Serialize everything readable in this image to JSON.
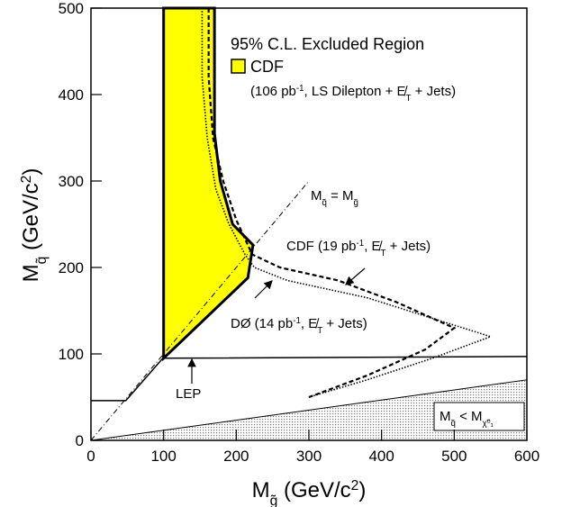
{
  "chart_data": {
    "type": "line",
    "xlabel": [
      "M",
      "g̃",
      " (GeV/c",
      "2",
      ")"
    ],
    "ylabel": [
      "M",
      "q̃",
      " (GeV/c",
      "2",
      ")"
    ],
    "xlim": [
      0,
      600
    ],
    "ylim": [
      0,
      500
    ],
    "xticks": [
      0,
      100,
      200,
      300,
      400,
      500,
      600
    ],
    "yticks": [
      0,
      100,
      200,
      300,
      400,
      500
    ],
    "annotations": {
      "title": [
        "95% C.L. Excluded Region"
      ],
      "cdf_legend": [
        "CDF"
      ],
      "cdf_note": [
        "(106 pb",
        "-1",
        ", LS Dilepton + E̸",
        "T",
        " + Jets)"
      ],
      "diagonal": [
        "M",
        "q̃",
        " = M",
        "g̃"
      ],
      "cdf19": [
        "CDF (19 pb",
        "-1",
        ", E̸",
        "T",
        " + Jets)"
      ],
      "d0": [
        "DØ (14 pb",
        "-1",
        ", E̸",
        "T",
        " + Jets)"
      ],
      "lep": [
        "LEP"
      ],
      "lsp": [
        "M",
        "q̃",
        " < M",
        "χ̃⁰₁"
      ]
    },
    "series": [
      {
        "style": "filled",
        "color": "#ffff00",
        "x": [
          100,
          100,
          170,
          170,
          178,
          195,
          223,
          216,
          100
        ],
        "y": [
          95,
          500,
          500,
          355,
          300,
          250,
          226,
          188,
          95
        ]
      },
      {
        "style": "dashed",
        "color": "#000000",
        "x": [
          162,
          162,
          168,
          182,
          200,
          222,
          260,
          340,
          420,
          500,
          460,
          380,
          300
        ],
        "y": [
          500,
          420,
          350,
          300,
          255,
          215,
          200,
          185,
          160,
          130,
          105,
          75,
          50
        ]
      },
      {
        "style": "dotted",
        "color": "#000000",
        "x": [
          153,
          153,
          160,
          172,
          190,
          212,
          225,
          270,
          380,
          550,
          470,
          380,
          300
        ],
        "y": [
          500,
          420,
          350,
          290,
          250,
          215,
          200,
          185,
          165,
          120,
          95,
          70,
          50
        ]
      },
      {
        "style": "solid",
        "color": "#000000",
        "x": [
          0,
          48,
          99,
          600
        ],
        "y": [
          46,
          46,
          95,
          97
        ]
      },
      {
        "style": "dashdot",
        "color": "#000000",
        "x": [
          0,
          300
        ],
        "y": [
          0,
          300
        ]
      },
      {
        "style": "hatched",
        "color": "#999999",
        "x": [
          0,
          600,
          600
        ],
        "y": [
          0,
          70,
          0
        ]
      }
    ]
  }
}
